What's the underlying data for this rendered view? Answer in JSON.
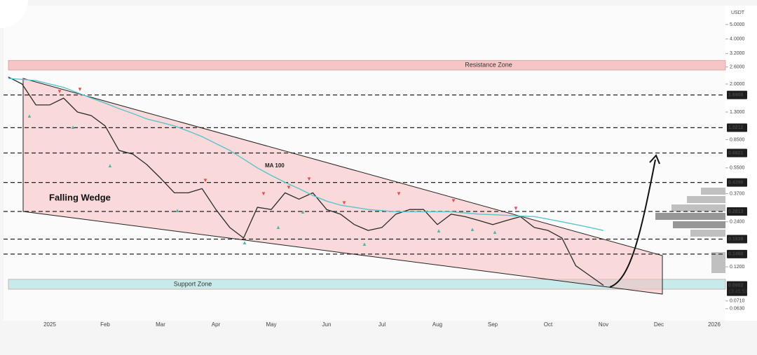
{
  "chart_data": {
    "type": "line",
    "y_unit": "USDT",
    "log_scale": true,
    "ylim": [
      0.0541,
      7.29
    ],
    "yticks": [
      {
        "value": 5,
        "label": "5.0000"
      },
      {
        "value": 4,
        "label": "4.0000"
      },
      {
        "value": 3.2,
        "label": "3.2000"
      },
      {
        "value": 2.6,
        "label": "2.6000"
      },
      {
        "value": 2,
        "label": "2.0000"
      },
      {
        "value": 1.3,
        "label": "1.3000"
      },
      {
        "value": 0.85,
        "label": "0.8500"
      },
      {
        "value": 0.55,
        "label": "0.5500"
      },
      {
        "value": 0.37,
        "label": "0.3700"
      },
      {
        "value": 0.24,
        "label": "0.2400"
      },
      {
        "value": 0.12,
        "label": "0.1200"
      },
      {
        "value": 0.071,
        "label": "0.0710"
      },
      {
        "value": 0.063,
        "label": "0.0630"
      }
    ],
    "categories": [
      null,
      null,
      null,
      "2025",
      null,
      null,
      null,
      "Feb",
      null,
      null,
      null,
      "Mar",
      null,
      null,
      null,
      "Apr",
      null,
      null,
      null,
      "May",
      null,
      null,
      null,
      "Jun",
      null,
      null,
      null,
      "Jul",
      null,
      null,
      null,
      "Aug",
      null,
      null,
      null,
      "Sep",
      null,
      null,
      null,
      "Oct",
      null,
      null,
      null,
      "Nov",
      null,
      null,
      null,
      "Dec",
      null,
      null,
      null,
      "2026"
    ],
    "series": [
      {
        "color": "#2b2b2b",
        "values": [
          2.23,
          2.0,
          1.45,
          1.45,
          1.61,
          1.3,
          1.23,
          1.05,
          0.72,
          0.68,
          0.58,
          0.47,
          0.375,
          0.375,
          0.4,
          0.29,
          0.22,
          0.187,
          0.3,
          0.29,
          0.375,
          0.34,
          0.375,
          0.29,
          0.27,
          0.23,
          0.21,
          0.22,
          0.27,
          0.29,
          0.29,
          0.23,
          0.27,
          0.26,
          0.245,
          0.23,
          0.245,
          0.26,
          0.22,
          0.21,
          0.187,
          0.122,
          0.105,
          0.0902,
          null,
          null,
          null,
          null,
          null,
          null,
          null,
          null
        ]
      },
      {
        "name": "MA 100",
        "color": "#5bc3cc",
        "values": [
          2.18,
          2.15,
          2.11,
          2.0,
          1.9,
          1.75,
          1.61,
          1.49,
          1.37,
          1.27,
          1.17,
          1.11,
          1.05,
          0.97,
          0.89,
          0.8,
          0.72,
          0.63,
          0.55,
          0.49,
          0.44,
          0.4,
          0.36,
          0.33,
          0.31,
          0.3,
          0.29,
          0.285,
          0.28,
          0.28,
          0.28,
          0.28,
          0.28,
          0.275,
          0.27,
          0.268,
          0.265,
          0.262,
          0.26,
          0.25,
          0.24,
          0.23,
          0.22,
          0.21,
          null,
          null,
          null,
          null,
          null,
          null,
          null,
          null
        ]
      }
    ],
    "levels": [
      {
        "value": 1.6908,
        "label": "1.6908"
      },
      {
        "value": 1.0212,
        "label": "1.0212"
      },
      {
        "value": 0.6921,
        "label": "0.6921"
      },
      {
        "value": 0.4396,
        "label": "0.4396"
      },
      {
        "value": 0.2813,
        "label": "0.2813"
      },
      {
        "value": 0.1839,
        "label": "0.1839"
      },
      {
        "value": 0.146,
        "label": "0.1460"
      }
    ],
    "last_price": {
      "value": 0.0902,
      "label": "0.0902",
      "countdown": "13:45:53"
    },
    "zones": [
      {
        "label": "Resistance Zone",
        "range": [
          2.48,
          2.88
        ],
        "color": "#f4b4b4"
      },
      {
        "label": "Support Zone",
        "range": [
          0.085,
          0.099
        ],
        "color": "#b6e6e6"
      }
    ],
    "pattern_label": "Falling Wedge"
  }
}
